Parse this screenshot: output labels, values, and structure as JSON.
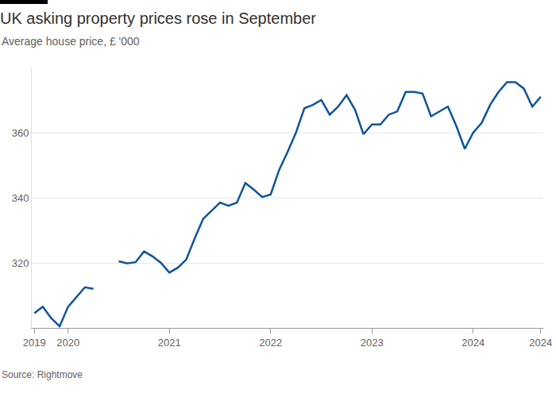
{
  "chart_data": {
    "type": "line",
    "title": "UK asking property prices rose in September",
    "subtitle": "Average house price, £ '000",
    "source": "Source: Rightmove",
    "categories": [
      "2019",
      null,
      null,
      null,
      "2020",
      null,
      null,
      null,
      null,
      null,
      null,
      null,
      null,
      null,
      null,
      null,
      "2021",
      null,
      null,
      null,
      null,
      null,
      null,
      null,
      null,
      null,
      null,
      null,
      "2022",
      null,
      null,
      null,
      null,
      null,
      null,
      null,
      null,
      null,
      null,
      null,
      "2023",
      null,
      null,
      null,
      null,
      null,
      null,
      null,
      null,
      null,
      null,
      null,
      "2024",
      null,
      null,
      null,
      null,
      null,
      null,
      null,
      "2024"
    ],
    "values": [
      304.5,
      306.5,
      303,
      300.5,
      306.5,
      309.5,
      312.5,
      312,
      null,
      null,
      320.5,
      319.8,
      320.2,
      323.5,
      322,
      320,
      317,
      318.5,
      321,
      327.5,
      333.5,
      336,
      338.5,
      337.5,
      338.5,
      344.5,
      342.5,
      340.2,
      341,
      348.5,
      354,
      360,
      367.5,
      368.5,
      370,
      365.5,
      368,
      371.5,
      367,
      359.5,
      362.5,
      362.5,
      365.5,
      366.5,
      372.5,
      372.5,
      372,
      365,
      366.5,
      368,
      362,
      355,
      360,
      363,
      368.5,
      372.5,
      375.5,
      375.5,
      373.5,
      368,
      371
    ],
    "color": "#0f5499",
    "ylim": [
      300,
      380
    ],
    "yticks": [
      320,
      340,
      360
    ],
    "grid": true
  }
}
